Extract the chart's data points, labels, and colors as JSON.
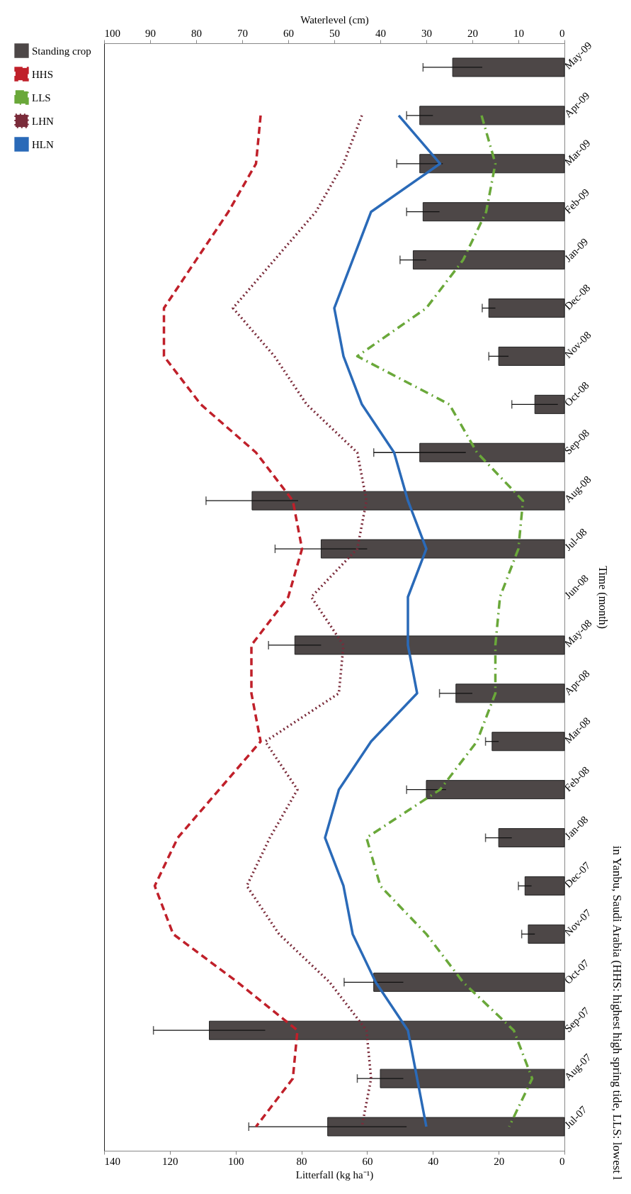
{
  "chart_data": {
    "type": "bar",
    "orientation": "horizontal",
    "categories": [
      "May-09",
      "Apr-09",
      "Mar-09",
      "Feb-09",
      "Jan-09",
      "Dec-08",
      "Nov-08",
      "Oct-08",
      "Sep-08",
      "Aug-08",
      "Jul-08",
      "Jun-08",
      "May-08",
      "Apr-08",
      "Mar-08",
      "Feb-08",
      "Jan-08",
      "Dec-07",
      "Nov-07",
      "Oct-07",
      "Sep-07",
      "Aug-07",
      "Jul-07"
    ],
    "series": [
      {
        "name": "Standing crop",
        "color": "#4d4747",
        "values": [
          34,
          44,
          44,
          43,
          46,
          23,
          20,
          9,
          44,
          95,
          74,
          null,
          82,
          33,
          22,
          42,
          20,
          12,
          11,
          58,
          108,
          56,
          72
        ],
        "errors": [
          9,
          4,
          7,
          5,
          4,
          2,
          3,
          7,
          14,
          14,
          14,
          null,
          8,
          5,
          2,
          6,
          4,
          2,
          2,
          9,
          17,
          7,
          24
        ]
      },
      {
        "name": "HHS",
        "type": "line",
        "axis": "x2",
        "color": "#c0202a",
        "line_style": "dashed",
        "values": [
          null,
          66,
          67,
          73,
          80,
          87,
          87,
          79,
          67,
          59,
          57,
          60,
          68,
          68,
          66,
          75,
          84,
          89,
          85,
          71,
          58,
          59,
          67
        ]
      },
      {
        "name": "LLS",
        "type": "line",
        "axis": "x2",
        "color": "#6aa83a",
        "line_style": "dashdot",
        "values": [
          null,
          18,
          15,
          17,
          22,
          30,
          45,
          25,
          19,
          9,
          10,
          14,
          15,
          15,
          19,
          27,
          43,
          40,
          30,
          22,
          11,
          7,
          12
        ]
      },
      {
        "name": "LHN",
        "type": "line",
        "axis": "x2",
        "color": "#7a2b3a",
        "line_style": "dotted",
        "values": [
          null,
          44,
          48,
          54,
          63,
          72,
          63,
          56,
          45,
          43,
          45,
          55,
          48,
          49,
          65,
          58,
          64,
          69,
          62,
          51,
          43,
          42,
          44
        ]
      },
      {
        "name": "HLN",
        "type": "line",
        "axis": "x2",
        "color": "#2a6ab8",
        "line_style": "solid",
        "values": [
          null,
          36,
          27,
          42,
          46,
          50,
          48,
          44,
          37,
          34,
          30,
          34,
          34,
          32,
          42,
          49,
          52,
          48,
          46,
          41,
          34,
          32,
          30
        ]
      }
    ],
    "xlabel": "Litterfall (kg ha⁻¹)",
    "xlim": [
      140,
      0
    ],
    "xticks": [
      140,
      120,
      100,
      80,
      60,
      40,
      20,
      0
    ],
    "x2label": "Waterlevel (cm)",
    "x2lim": [
      100,
      0
    ],
    "x2ticks": [
      100,
      90,
      80,
      70,
      60,
      50,
      40,
      30,
      20,
      10,
      0
    ],
    "ylabel": "Time (month)",
    "legend": "left",
    "grid": false,
    "annotations": [
      "in Yanbu, Saudi Arabia (HHS: highest high spring tide, LLS: lowest l"
    ]
  }
}
